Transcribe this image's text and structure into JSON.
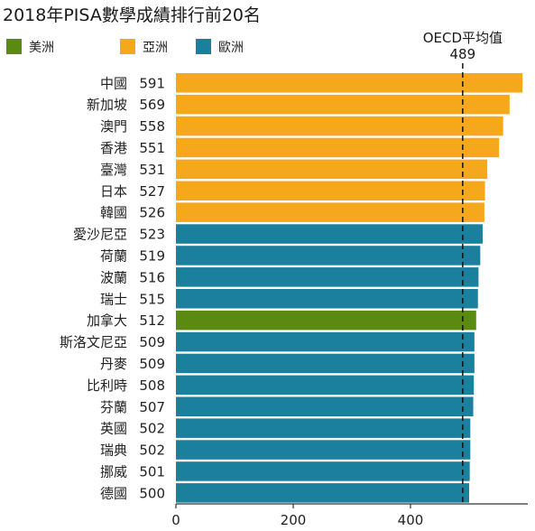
{
  "chart_data": {
    "type": "bar",
    "orientation": "horizontal",
    "title": "2018年PISA數學成績排行前20名",
    "legend": [
      {
        "label": "美洲",
        "color": "#5b8a12"
      },
      {
        "label": "亞洲",
        "color": "#f5a81c"
      },
      {
        "label": "歐洲",
        "color": "#1b7f9e"
      }
    ],
    "categories": [
      "中國",
      "新加坡",
      "澳門",
      "香港",
      "臺灣",
      "日本",
      "韓國",
      "愛沙尼亞",
      "荷蘭",
      "波蘭",
      "瑞士",
      "加拿大",
      "斯洛文尼亞",
      "丹麥",
      "比利時",
      "芬蘭",
      "英國",
      "瑞典",
      "挪威",
      "德國"
    ],
    "values": [
      591,
      569,
      558,
      551,
      531,
      527,
      526,
      523,
      519,
      516,
      515,
      512,
      509,
      509,
      508,
      507,
      502,
      502,
      501,
      500
    ],
    "region": [
      "亞洲",
      "亞洲",
      "亞洲",
      "亞洲",
      "亞洲",
      "亞洲",
      "亞洲",
      "歐洲",
      "歐洲",
      "歐洲",
      "歐洲",
      "美洲",
      "歐洲",
      "歐洲",
      "歐洲",
      "歐洲",
      "歐洲",
      "歐洲",
      "歐洲",
      "歐洲"
    ],
    "xlim": [
      0,
      600
    ],
    "xticks": [
      0,
      200,
      400
    ],
    "grid": false,
    "legend_position": "top-left",
    "reference_line": {
      "label": "OECD平均值",
      "value_label": "489",
      "value": 489
    }
  }
}
